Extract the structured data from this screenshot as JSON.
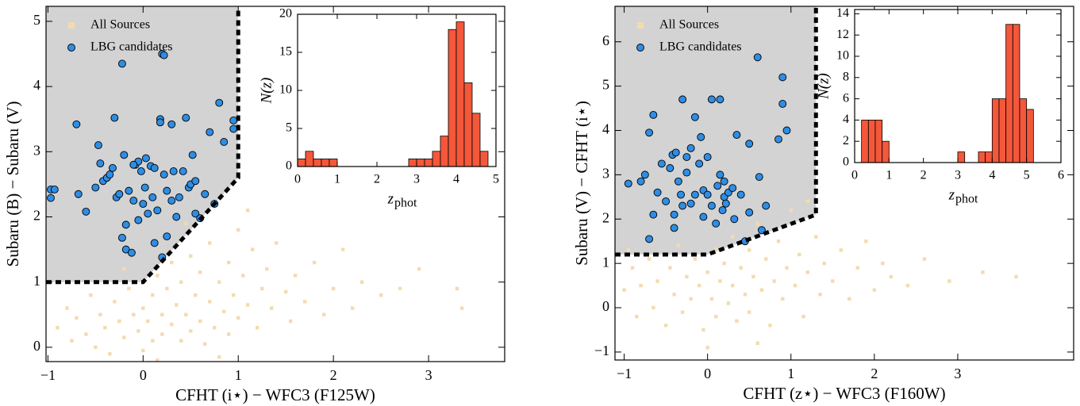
{
  "chart_data": [
    {
      "type": "scatter",
      "xlabel": "CFHT (i⋆) − WFC3 (F125W)",
      "ylabel": "Subaru (B) − Subaru (V)",
      "xlim": [
        -1.02,
        3.8
      ],
      "ylim": [
        -0.22,
        5.23
      ],
      "xticks": [
        {
          "value": -1,
          "label": "−1"
        },
        0,
        1,
        2,
        3
      ],
      "yticks": [
        0,
        1,
        2,
        3,
        4,
        5
      ],
      "legend": "upper left",
      "region": {
        "x": [
          -1.02,
          0,
          1,
          1
        ],
        "y": [
          1,
          1,
          2.6,
          5.23
        ],
        "color": "#d3d3d3"
      },
      "series": [
        {
          "name": "All Sources",
          "color": "#f3dbb0",
          "marker": "s",
          "x": [
            -0.9,
            -0.8,
            -0.75,
            -0.7,
            -0.6,
            -0.55,
            -0.5,
            -0.45,
            -0.4,
            -0.35,
            -0.3,
            -0.25,
            -0.2,
            -0.15,
            -0.1,
            -0.05,
            0,
            0,
            0.05,
            0.1,
            0.1,
            0.15,
            0.2,
            0.2,
            0.25,
            0.3,
            0.3,
            0.35,
            0.4,
            0.4,
            0.45,
            0.5,
            0.5,
            0.55,
            0.6,
            0.6,
            0.65,
            0.7,
            0.7,
            0.75,
            0.8,
            0.85,
            0.9,
            0.9,
            0.95,
            1.0,
            1.0,
            1.05,
            1.1,
            1.15,
            1.2,
            1.25,
            1.3,
            1.35,
            1.4,
            1.5,
            1.55,
            1.6,
            1.7,
            1.8,
            1.9,
            2.0,
            2.1,
            2.2,
            2.3,
            2.5,
            2.7,
            2.9,
            3.3,
            3.35,
            0.15,
            -0.2,
            0.45,
            1.1,
            0.8
          ],
          "values": [
            0.3,
            0.6,
            0.1,
            0.45,
            0.2,
            0.8,
            0.0,
            0.5,
            0.3,
            -0.1,
            0.7,
            0.4,
            0.15,
            0.9,
            0.5,
            0.25,
            0.6,
            -0.05,
            0.4,
            0.8,
            0.1,
            1.1,
            0.5,
            0.2,
            0.9,
            0.35,
            1.3,
            0.65,
            0.1,
            1.0,
            0.5,
            1.4,
            0.25,
            0.8,
            0.4,
            1.15,
            0.05,
            0.7,
            1.6,
            0.3,
            1.0,
            0.55,
            1.3,
            0.2,
            0.8,
            1.8,
            0.45,
            1.1,
            0.65,
            1.5,
            0.3,
            0.9,
            1.2,
            0.6,
            1.6,
            0.85,
            0.4,
            1.1,
            0.7,
            1.3,
            0.5,
            0.9,
            1.5,
            0.6,
            1.0,
            0.8,
            0.9,
            1.2,
            0.9,
            0.6,
            -0.2,
            1.2,
            1.9,
            2.1,
            -0.15
          ]
        },
        {
          "name": "LBG candidates",
          "color": "#2f8de4",
          "edgecolor": "#000000",
          "marker": "o",
          "x": [
            -0.97,
            -0.93,
            -0.97,
            -0.7,
            -0.68,
            -0.6,
            -0.5,
            -0.47,
            -0.45,
            -0.42,
            -0.38,
            -0.35,
            -0.32,
            -0.3,
            -0.28,
            -0.25,
            -0.22,
            -0.22,
            -0.2,
            -0.18,
            -0.18,
            -0.15,
            -0.12,
            -0.1,
            -0.08,
            -0.05,
            -0.05,
            -0.02,
            0,
            0.02,
            0.03,
            0.05,
            0.08,
            0.1,
            0.12,
            0.15,
            0.18,
            0.18,
            0.2,
            0.22,
            0.22,
            0.25,
            0.3,
            0.3,
            0.35,
            0.38,
            0.42,
            0.45,
            0.48,
            0.5,
            0.52,
            0.55,
            0.55,
            0.6,
            0.65,
            0.7,
            0.75,
            0.8,
            0.85,
            0.95,
            0.95,
            0.2,
            0.25,
            0.32,
            -0.1,
            0.12
          ],
          "values": [
            2.42,
            2.42,
            2.29,
            3.42,
            2.35,
            2.08,
            2.45,
            3.1,
            2.82,
            2.55,
            2.6,
            2.65,
            2.75,
            3.52,
            2.3,
            2.35,
            4.35,
            1.68,
            2.95,
            1.88,
            1.5,
            2.4,
            1.45,
            2.25,
            2.8,
            2.85,
            1.95,
            2.7,
            2.2,
            2.45,
            2.9,
            2.05,
            2.78,
            2.3,
            1.6,
            2.1,
            3.5,
            3.45,
            4.5,
            4.48,
            2.65,
            2.4,
            3.42,
            2.25,
            2.0,
            2.3,
            2.7,
            3.52,
            2.45,
            2.5,
            2.95,
            2.55,
            2.05,
            1.98,
            2.35,
            3.3,
            2.2,
            3.75,
            3.15,
            3.48,
            3.35,
            1.38,
            1.7,
            2.7,
            2.8,
            2.75
          ]
        }
      ]
    },
    {
      "type": "histogram",
      "xlabel": "z",
      "xlabel_subscript": "phot",
      "ylabel": "N(z)",
      "xlim": [
        0,
        5
      ],
      "ylim": [
        0,
        20
      ],
      "xticks": [
        0,
        1,
        2,
        3,
        4,
        5
      ],
      "yticks": [
        0,
        5,
        10,
        15,
        20
      ],
      "color": "#f4573a",
      "bins": [
        0,
        0.2,
        0.4,
        0.6,
        0.8,
        1.0,
        1.2,
        1.4,
        1.6,
        1.8,
        2.0,
        2.2,
        2.4,
        2.6,
        2.8,
        3.0,
        3.2,
        3.4,
        3.6,
        3.8,
        4.0,
        4.2,
        4.4,
        4.6,
        4.8,
        5.0
      ],
      "values": [
        1,
        2,
        1,
        1,
        1,
        0,
        0,
        0,
        0,
        0,
        0,
        0,
        0,
        0,
        1,
        1,
        1,
        2,
        4,
        18,
        19,
        11,
        7,
        2,
        0
      ]
    },
    {
      "type": "scatter",
      "xlabel": "CFHT (z⋆) − WFC3 (F160W)",
      "ylabel": "Subaru (V) − CFHT (i⋆)",
      "xlim": [
        -1.11,
        4.39
      ],
      "ylim": [
        -1.18,
        6.8
      ],
      "xticks": [
        {
          "value": -1,
          "label": "−1"
        },
        0,
        1,
        2,
        3
      ],
      "yticks": [
        {
          "value": -1,
          "label": "−1"
        },
        0,
        1,
        2,
        3,
        4,
        5,
        6
      ],
      "legend": "upper left",
      "region": {
        "x": [
          -1.11,
          0,
          1.3,
          1.3
        ],
        "y": [
          1.2,
          1.2,
          2.1,
          6.8
        ],
        "color": "#d3d3d3"
      },
      "series": [
        {
          "name": "All Sources",
          "color": "#f3dbb0",
          "marker": "s",
          "x": [
            -1.0,
            -0.9,
            -0.85,
            -0.8,
            -0.7,
            -0.65,
            -0.6,
            -0.5,
            -0.45,
            -0.4,
            -0.35,
            -0.3,
            -0.25,
            -0.2,
            -0.15,
            -0.1,
            -0.05,
            0,
            0.05,
            0.1,
            0.1,
            0.15,
            0.2,
            0.25,
            0.3,
            0.3,
            0.35,
            0.4,
            0.45,
            0.5,
            0.5,
            0.55,
            0.6,
            0.65,
            0.7,
            0.75,
            0.8,
            0.85,
            0.9,
            0.95,
            1.0,
            1.05,
            1.1,
            1.15,
            1.2,
            1.3,
            1.35,
            1.4,
            1.5,
            1.6,
            1.7,
            1.8,
            1.9,
            2.0,
            2.1,
            2.2,
            2.4,
            2.6,
            2.9,
            3.3,
            3.7,
            0.0,
            0.6,
            1.2,
            -0.95
          ],
          "values": [
            0.4,
            0.9,
            -0.2,
            0.5,
            1.1,
            0.0,
            0.6,
            -0.4,
            0.9,
            0.3,
            1.4,
            -0.1,
            0.7,
            0.2,
            1.1,
            0.5,
            -0.5,
            0.8,
            0.2,
            1.3,
            -0.2,
            0.6,
            1.0,
            0.1,
            1.6,
            0.5,
            -0.3,
            0.9,
            0.3,
            1.3,
            -0.1,
            0.7,
            1.9,
            0.4,
            1.1,
            -0.4,
            0.6,
            1.5,
            0.2,
            0.9,
            2.2,
            0.5,
            1.2,
            -0.2,
            0.8,
            1.6,
            0.3,
            1.0,
            0.6,
            1.3,
            0.2,
            0.9,
            1.5,
            0.4,
            1.0,
            0.7,
            0.5,
            1.1,
            0.6,
            0.8,
            0.7,
            -0.9,
            -0.8,
            2.4,
            1.3
          ]
        },
        {
          "name": "LBG candidates",
          "color": "#2f8de4",
          "edgecolor": "#000000",
          "marker": "o",
          "x": [
            -0.95,
            -0.8,
            -0.75,
            -0.7,
            -0.7,
            -0.65,
            -0.65,
            -0.6,
            -0.55,
            -0.5,
            -0.45,
            -0.42,
            -0.4,
            -0.4,
            -0.38,
            -0.35,
            -0.32,
            -0.3,
            -0.3,
            -0.25,
            -0.2,
            -0.2,
            -0.15,
            -0.15,
            -0.1,
            -0.08,
            -0.05,
            -0.05,
            0,
            0.0,
            0.05,
            0.05,
            0.1,
            0.12,
            0.15,
            0.15,
            0.18,
            0.2,
            0.22,
            0.25,
            0.3,
            0.32,
            0.35,
            0.4,
            0.45,
            0.5,
            0.5,
            0.6,
            0.62,
            0.65,
            0.7,
            0.85,
            0.9,
            0.9,
            0.95,
            0.2,
            -0.25
          ],
          "values": [
            2.8,
            2.85,
            3.0,
            1.55,
            3.95,
            4.35,
            2.1,
            2.6,
            3.25,
            2.4,
            3.15,
            3.45,
            2.1,
            1.8,
            3.5,
            2.85,
            2.55,
            4.7,
            2.3,
            3.05,
            3.6,
            2.35,
            2.55,
            4.3,
            3.25,
            3.85,
            2.65,
            2.05,
            3.4,
            2.55,
            4.7,
            2.3,
            1.9,
            2.75,
            3.0,
            4.7,
            2.2,
            2.5,
            2.35,
            2.6,
            2.7,
            2.0,
            3.9,
            2.55,
            1.5,
            2.15,
            3.7,
            5.65,
            2.95,
            1.75,
            2.3,
            3.8,
            4.6,
            5.2,
            4.0,
            2.85,
            3.4
          ]
        }
      ]
    },
    {
      "type": "histogram",
      "xlabel": "z",
      "xlabel_subscript": "phot",
      "ylabel": "N(z)",
      "xlim": [
        0,
        6
      ],
      "ylim": [
        0,
        14.4
      ],
      "xticks": [
        0,
        1,
        2,
        3,
        4,
        5,
        6
      ],
      "yticks": [
        0,
        2,
        4,
        6,
        8,
        10,
        12,
        14
      ],
      "color": "#f4573a",
      "bins": [
        0,
        0.2,
        0.4,
        0.6,
        0.8,
        1.0,
        1.2,
        1.4,
        1.6,
        1.8,
        2.0,
        2.2,
        2.4,
        2.6,
        2.8,
        3.0,
        3.2,
        3.4,
        3.6,
        3.8,
        4.0,
        4.2,
        4.4,
        4.6,
        4.8,
        5.0,
        5.2,
        5.4,
        5.6,
        5.8,
        6.0
      ],
      "values": [
        0,
        4,
        4,
        4,
        2,
        0,
        0,
        0,
        0,
        0,
        0,
        0,
        0,
        0,
        0,
        1,
        0,
        0,
        1,
        1,
        6,
        6,
        13,
        13,
        6,
        5,
        0,
        0,
        0,
        0
      ]
    }
  ]
}
